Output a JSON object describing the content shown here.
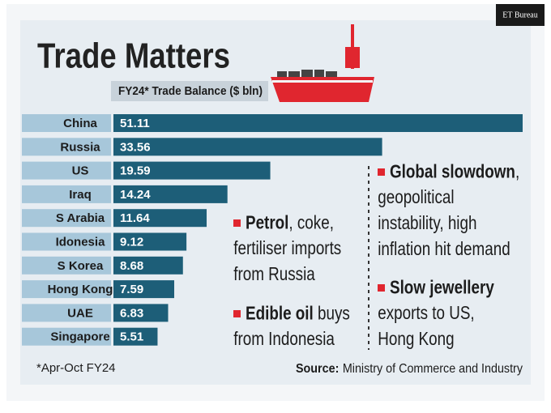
{
  "chart_data": {
    "type": "bar",
    "orientation": "horizontal",
    "title": "Trade Matters",
    "subtitle": "FY24* Trade Balance ($ bln)",
    "credit": "ET Bureau",
    "categories": [
      "China",
      "Russia",
      "US",
      "Iraq",
      "S Arabia",
      "Idonesia",
      "S Korea",
      "Hong Kong",
      "UAE",
      "Singapore"
    ],
    "values": [
      51.11,
      33.56,
      19.59,
      14.24,
      11.64,
      9.12,
      8.68,
      7.59,
      6.83,
      5.51
    ],
    "color": "#1d5e78",
    "label_color": "#a7c7da",
    "annotations": [
      {
        "bold": "Petrol",
        "lines": [
          ", coke,",
          "fertiliser imports",
          "from Russia"
        ]
      },
      {
        "bold": "Edible oil",
        "lines": [
          " buys",
          "from Indonesia"
        ]
      },
      {
        "bold": "Global slowdown",
        "lines": [
          ",",
          "geopolitical",
          "instability, high",
          "inflation hit demand"
        ]
      },
      {
        "bold": "Slow jewellery",
        "lines": [
          "",
          "exports to US,",
          "Hong Kong"
        ]
      }
    ],
    "footnote": "*Apr-Oct FY24",
    "source_label": "Source:",
    "source": "Ministry of Commerce and Industry"
  }
}
